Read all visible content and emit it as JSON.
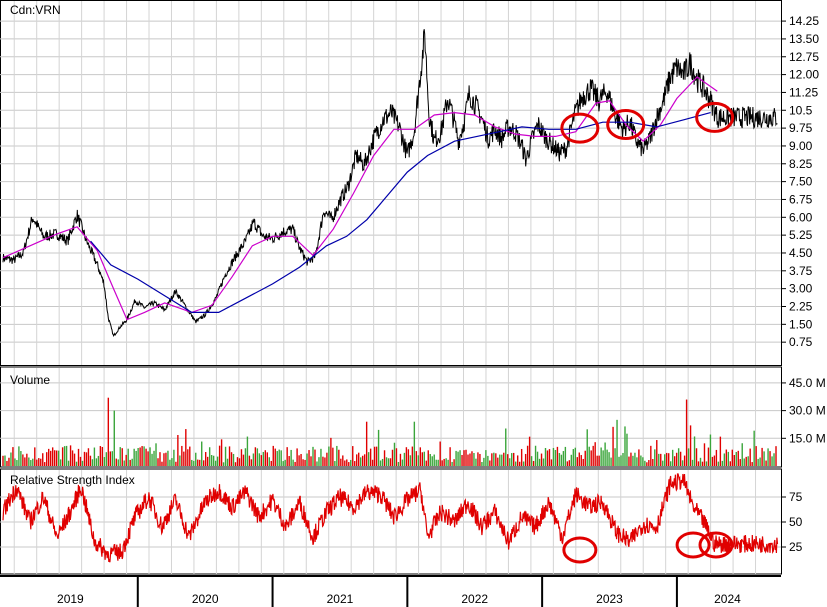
{
  "chart_data": [
    {
      "type": "line",
      "title": "Cdn:VRN",
      "yticks": [
        0.75,
        1.5,
        2.25,
        3.0,
        3.75,
        4.5,
        5.25,
        6.0,
        6.75,
        7.5,
        8.25,
        9.0,
        9.75,
        10.5,
        11.25,
        12.0,
        12.75,
        13.5,
        14.25
      ],
      "ytick_labels": [
        "0.75",
        "1.50",
        "2.25",
        "3.00",
        "3.75",
        "4.50",
        "5.25",
        "6.00",
        "6.75",
        "7.50",
        "8.25",
        "9.00",
        "9.75",
        "10.5",
        "11.25",
        "12.00",
        "12.75",
        "13.50",
        "14.25"
      ],
      "ylim": [
        0,
        14.8
      ],
      "xlim": [
        2019.0,
        2024.75
      ],
      "grid": true,
      "price_path": [
        [
          2019.0,
          4.3
        ],
        [
          2019.08,
          4.2
        ],
        [
          2019.15,
          4.5
        ],
        [
          2019.22,
          6.0
        ],
        [
          2019.3,
          5.2
        ],
        [
          2019.4,
          5.3
        ],
        [
          2019.48,
          5.0
        ],
        [
          2019.55,
          6.1
        ],
        [
          2019.62,
          5.0
        ],
        [
          2019.7,
          4.0
        ],
        [
          2019.75,
          3.2
        ],
        [
          2019.78,
          1.8
        ],
        [
          2019.82,
          1.0
        ],
        [
          2019.87,
          1.4
        ],
        [
          2019.92,
          1.7
        ],
        [
          2019.98,
          2.5
        ],
        [
          2020.05,
          2.2
        ],
        [
          2020.12,
          2.4
        ],
        [
          2020.2,
          2.1
        ],
        [
          2020.28,
          2.9
        ],
        [
          2020.36,
          2.2
        ],
        [
          2020.43,
          1.6
        ],
        [
          2020.5,
          1.9
        ],
        [
          2020.58,
          2.6
        ],
        [
          2020.65,
          3.6
        ],
        [
          2020.72,
          4.3
        ],
        [
          2020.8,
          5.0
        ],
        [
          2020.86,
          5.8
        ],
        [
          2020.93,
          5.2
        ],
        [
          2021.0,
          5.1
        ],
        [
          2021.08,
          5.4
        ],
        [
          2021.15,
          5.5
        ],
        [
          2021.2,
          4.7
        ],
        [
          2021.26,
          4.1
        ],
        [
          2021.32,
          4.4
        ],
        [
          2021.38,
          6.3
        ],
        [
          2021.44,
          5.9
        ],
        [
          2021.5,
          6.7
        ],
        [
          2021.56,
          7.3
        ],
        [
          2021.62,
          8.6
        ],
        [
          2021.68,
          8.2
        ],
        [
          2021.75,
          9.3
        ],
        [
          2021.82,
          10.1
        ],
        [
          2021.88,
          10.4
        ],
        [
          2021.94,
          9.8
        ],
        [
          2022.0,
          8.6
        ],
        [
          2022.05,
          9.6
        ],
        [
          2022.1,
          12.2
        ],
        [
          2022.13,
          13.7
        ],
        [
          2022.16,
          10.4
        ],
        [
          2022.2,
          9.2
        ],
        [
          2022.25,
          9.6
        ],
        [
          2022.3,
          11.0
        ],
        [
          2022.34,
          10.2
        ],
        [
          2022.38,
          9.2
        ],
        [
          2022.42,
          10.0
        ],
        [
          2022.46,
          11.2
        ],
        [
          2022.5,
          10.8
        ],
        [
          2022.55,
          10.2
        ],
        [
          2022.6,
          9.3
        ],
        [
          2022.65,
          9.7
        ],
        [
          2022.7,
          9.3
        ],
        [
          2022.75,
          9.8
        ],
        [
          2022.8,
          9.6
        ],
        [
          2022.85,
          9.0
        ],
        [
          2022.88,
          8.4
        ],
        [
          2022.92,
          9.2
        ],
        [
          2022.97,
          9.9
        ],
        [
          2023.02,
          9.4
        ],
        [
          2023.08,
          9.0
        ],
        [
          2023.13,
          8.7
        ],
        [
          2023.18,
          8.9
        ],
        [
          2023.24,
          10.3
        ],
        [
          2023.3,
          11.1
        ],
        [
          2023.36,
          11.4
        ],
        [
          2023.42,
          10.9
        ],
        [
          2023.48,
          11.3
        ],
        [
          2023.55,
          10.2
        ],
        [
          2023.6,
          9.7
        ],
        [
          2023.65,
          10.0
        ],
        [
          2023.7,
          9.2
        ],
        [
          2023.75,
          8.8
        ],
        [
          2023.8,
          9.3
        ],
        [
          2023.85,
          10.2
        ],
        [
          2023.9,
          10.9
        ],
        [
          2023.95,
          11.9
        ],
        [
          2024.0,
          12.3
        ],
        [
          2024.05,
          12.0
        ],
        [
          2024.1,
          12.5
        ],
        [
          2024.15,
          11.8
        ],
        [
          2024.2,
          11.4
        ],
        [
          2024.25,
          10.9
        ],
        [
          2024.3,
          10.2
        ]
      ],
      "ma_short": [
        [
          2019.0,
          4.3
        ],
        [
          2019.2,
          4.8
        ],
        [
          2019.4,
          5.3
        ],
        [
          2019.55,
          5.6
        ],
        [
          2019.7,
          4.6
        ],
        [
          2019.82,
          3.0
        ],
        [
          2019.92,
          1.7
        ],
        [
          2020.05,
          2.0
        ],
        [
          2020.2,
          2.4
        ],
        [
          2020.4,
          2.0
        ],
        [
          2020.55,
          2.3
        ],
        [
          2020.7,
          3.5
        ],
        [
          2020.85,
          4.8
        ],
        [
          2021.0,
          5.2
        ],
        [
          2021.15,
          5.2
        ],
        [
          2021.3,
          4.4
        ],
        [
          2021.45,
          5.5
        ],
        [
          2021.6,
          7.0
        ],
        [
          2021.75,
          8.6
        ],
        [
          2021.9,
          9.7
        ],
        [
          2022.05,
          9.7
        ],
        [
          2022.2,
          10.3
        ],
        [
          2022.35,
          10.4
        ],
        [
          2022.5,
          10.3
        ],
        [
          2022.65,
          9.8
        ],
        [
          2022.8,
          9.5
        ],
        [
          2022.95,
          9.4
        ],
        [
          2023.1,
          9.4
        ],
        [
          2023.25,
          9.6
        ],
        [
          2023.4,
          10.8
        ],
        [
          2023.5,
          10.9
        ],
        [
          2023.62,
          9.9
        ],
        [
          2023.75,
          9.2
        ],
        [
          2023.88,
          9.9
        ],
        [
          2024.0,
          11.0
        ],
        [
          2024.15,
          11.9
        ],
        [
          2024.3,
          11.3
        ]
      ],
      "ma_long": [
        [
          2019.65,
          5.0
        ],
        [
          2019.8,
          4.0
        ],
        [
          2020.0,
          3.4
        ],
        [
          2020.2,
          2.7
        ],
        [
          2020.4,
          2.0
        ],
        [
          2020.6,
          2.0
        ],
        [
          2020.8,
          2.6
        ],
        [
          2021.0,
          3.2
        ],
        [
          2021.2,
          3.9
        ],
        [
          2021.4,
          4.8
        ],
        [
          2021.55,
          5.2
        ],
        [
          2021.7,
          5.9
        ],
        [
          2021.85,
          6.9
        ],
        [
          2022.0,
          7.9
        ],
        [
          2022.15,
          8.6
        ],
        [
          2022.35,
          9.2
        ],
        [
          2022.6,
          9.5
        ],
        [
          2022.85,
          9.8
        ],
        [
          2023.05,
          9.7
        ],
        [
          2023.25,
          9.7
        ],
        [
          2023.45,
          10.0
        ],
        [
          2023.65,
          10.0
        ],
        [
          2023.85,
          9.8
        ],
        [
          2024.05,
          10.1
        ],
        [
          2024.25,
          10.4
        ]
      ],
      "colors": {
        "price": "#000000",
        "ma_short": "#cc00cc",
        "ma_long": "#0000aa",
        "annotation": "#e00000"
      }
    },
    {
      "type": "bar",
      "title": "Volume",
      "ytick_labels": [
        "15.0 M",
        "30.0 M",
        "45.0 M"
      ],
      "yticks": [
        15,
        30,
        45
      ],
      "ylim": [
        0,
        52
      ],
      "unit": "M",
      "spikes": [
        [
          2019.78,
          37
        ],
        [
          2019.82,
          30
        ],
        [
          2020.35,
          20
        ],
        [
          2021.7,
          24
        ],
        [
          2022.05,
          24
        ],
        [
          2023.55,
          25
        ],
        [
          2024.07,
          36
        ],
        [
          2024.1,
          22
        ]
      ],
      "colors": {
        "up": "#3aa53a",
        "down": "#e00000"
      }
    },
    {
      "type": "line",
      "title": "Relative Strength Index",
      "yticks": [
        25,
        50,
        75
      ],
      "ytick_labels": [
        "25",
        "50",
        "75"
      ],
      "ylim": [
        0,
        100
      ],
      "rsi_path": [
        [
          2019.0,
          60
        ],
        [
          2019.1,
          85
        ],
        [
          2019.2,
          50
        ],
        [
          2019.3,
          75
        ],
        [
          2019.4,
          35
        ],
        [
          2019.5,
          60
        ],
        [
          2019.58,
          85
        ],
        [
          2019.68,
          30
        ],
        [
          2019.78,
          18
        ],
        [
          2019.88,
          20
        ],
        [
          2019.98,
          55
        ],
        [
          2020.08,
          75
        ],
        [
          2020.18,
          45
        ],
        [
          2020.28,
          72
        ],
        [
          2020.38,
          35
        ],
        [
          2020.5,
          70
        ],
        [
          2020.6,
          82
        ],
        [
          2020.7,
          65
        ],
        [
          2020.8,
          80
        ],
        [
          2020.9,
          55
        ],
        [
          2021.0,
          72
        ],
        [
          2021.1,
          45
        ],
        [
          2021.2,
          70
        ],
        [
          2021.3,
          35
        ],
        [
          2021.4,
          60
        ],
        [
          2021.5,
          75
        ],
        [
          2021.6,
          65
        ],
        [
          2021.7,
          80
        ],
        [
          2021.8,
          78
        ],
        [
          2021.9,
          55
        ],
        [
          2022.0,
          72
        ],
        [
          2022.1,
          82
        ],
        [
          2022.15,
          35
        ],
        [
          2022.25,
          60
        ],
        [
          2022.35,
          50
        ],
        [
          2022.45,
          70
        ],
        [
          2022.55,
          45
        ],
        [
          2022.65,
          60
        ],
        [
          2022.75,
          30
        ],
        [
          2022.85,
          55
        ],
        [
          2022.95,
          45
        ],
        [
          2023.05,
          70
        ],
        [
          2023.15,
          35
        ],
        [
          2023.25,
          78
        ],
        [
          2023.35,
          65
        ],
        [
          2023.45,
          70
        ],
        [
          2023.55,
          40
        ],
        [
          2023.65,
          30
        ],
        [
          2023.75,
          48
        ],
        [
          2023.85,
          45
        ],
        [
          2023.95,
          88
        ],
        [
          2024.05,
          92
        ],
        [
          2024.12,
          65
        ],
        [
          2024.2,
          50
        ],
        [
          2024.28,
          28
        ]
      ],
      "colors": {
        "rsi": "#e00000"
      }
    }
  ],
  "x_axis": {
    "labels": [
      "2019",
      "2020",
      "2021",
      "2022",
      "2023",
      "2024"
    ]
  },
  "annotations": [
    {
      "panel": "price",
      "x": 2023.28,
      "y": 9.75
    },
    {
      "panel": "price",
      "x": 2023.62,
      "y": 9.9
    },
    {
      "panel": "price",
      "x": 2024.28,
      "y": 10.2
    },
    {
      "panel": "rsi",
      "x": 2023.28,
      "y": 22
    },
    {
      "panel": "rsi",
      "x": 2024.12,
      "y": 27
    },
    {
      "panel": "rsi",
      "x": 2024.29,
      "y": 27
    }
  ]
}
